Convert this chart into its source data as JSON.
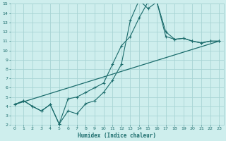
{
  "xlabel": "Humidex (Indice chaleur)",
  "xlim": [
    -0.5,
    23.5
  ],
  "ylim": [
    2,
    15
  ],
  "xticks": [
    0,
    1,
    2,
    3,
    4,
    5,
    6,
    7,
    8,
    9,
    10,
    11,
    12,
    13,
    14,
    15,
    16,
    17,
    18,
    19,
    20,
    21,
    22,
    23
  ],
  "yticks": [
    2,
    3,
    4,
    5,
    6,
    7,
    8,
    9,
    10,
    11,
    12,
    13,
    14,
    15
  ],
  "background_color": "#ceeeed",
  "grid_color": "#a8d4d4",
  "line_color": "#1a6b6b",
  "line1_x": [
    0,
    1,
    2,
    3,
    4,
    5,
    6,
    7,
    8,
    9,
    10,
    11,
    12,
    13,
    14,
    15,
    16,
    17,
    18,
    19,
    20,
    21,
    22,
    23
  ],
  "line1_y": [
    4.2,
    4.6,
    4.0,
    3.5,
    4.2,
    2.1,
    3.5,
    3.2,
    4.3,
    4.6,
    5.5,
    6.8,
    8.5,
    13.2,
    15.4,
    14.5,
    15.2,
    12.0,
    11.2,
    11.3,
    11.0,
    10.8,
    11.0,
    11.0
  ],
  "line2_x": [
    0,
    1,
    2,
    3,
    4,
    5,
    6,
    7,
    8,
    9,
    10,
    11,
    12,
    13,
    14,
    15,
    16,
    17,
    18,
    19,
    20,
    21,
    22,
    23
  ],
  "line2_y": [
    4.2,
    4.6,
    4.0,
    3.5,
    4.2,
    2.1,
    4.8,
    5.0,
    5.5,
    6.0,
    6.5,
    8.5,
    10.5,
    11.5,
    13.5,
    15.2,
    15.2,
    11.5,
    11.2,
    11.3,
    11.0,
    10.8,
    11.0,
    11.0
  ],
  "line3_x": [
    0,
    23
  ],
  "line3_y": [
    4.2,
    11.0
  ]
}
